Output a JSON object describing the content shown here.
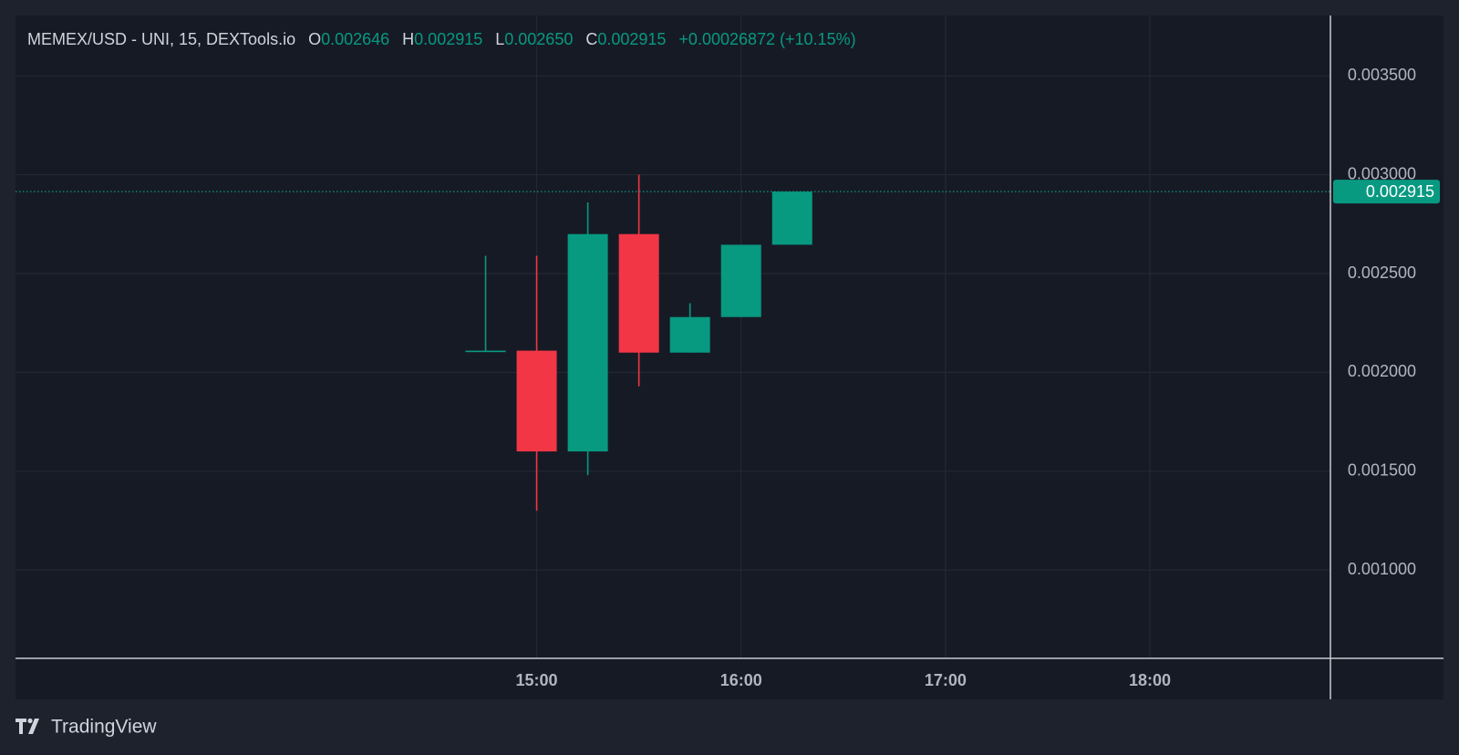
{
  "chart_data": {
    "type": "candlestick",
    "header": {
      "symbol": "MEMEX/USD - UNI, 15, DEXTools.io",
      "fields": [
        {
          "key": "O",
          "value": "0.002646"
        },
        {
          "key": "H",
          "value": "0.002915"
        },
        {
          "key": "L",
          "value": "0.002650"
        },
        {
          "key": "C",
          "value": "0.002915"
        }
      ],
      "change": "+0.00026872 (+10.15%)"
    },
    "x": [
      "14:45",
      "15:00",
      "15:15",
      "15:30",
      "15:45",
      "16:00",
      "16:15"
    ],
    "open": [
      0.00211,
      0.00211,
      0.0016,
      0.0027,
      0.0021,
      0.00228,
      0.002646
    ],
    "high": [
      0.00259,
      0.00259,
      0.00286,
      0.003,
      0.00235,
      0.002646,
      0.002915
    ],
    "low": [
      0.00211,
      0.0013,
      0.00148,
      0.00193,
      0.0021,
      0.00228,
      0.00265
    ],
    "close": [
      0.00211,
      0.0016,
      0.0027,
      0.0021,
      0.00228,
      0.002646,
      0.002915
    ],
    "up_color": "#089981",
    "down_color": "#f23645",
    "xlim": [
      "12:27",
      "18:53"
    ],
    "xticks": [
      "15:00",
      "16:00",
      "17:00",
      "18:00"
    ],
    "ylim": [
      0.000553,
      0.003806
    ],
    "yticks": [
      {
        "value": 0.001,
        "label": "0.001000"
      },
      {
        "value": 0.0015,
        "label": "0.001500"
      },
      {
        "value": 0.002,
        "label": "0.002000"
      },
      {
        "value": 0.0025,
        "label": "0.002500"
      },
      {
        "value": 0.003,
        "label": "0.003000"
      },
      {
        "value": 0.0035,
        "label": "0.003500"
      }
    ],
    "last_price": {
      "value": 0.002915,
      "label": "0.002915"
    },
    "grid": true
  },
  "branding": "TradingView"
}
